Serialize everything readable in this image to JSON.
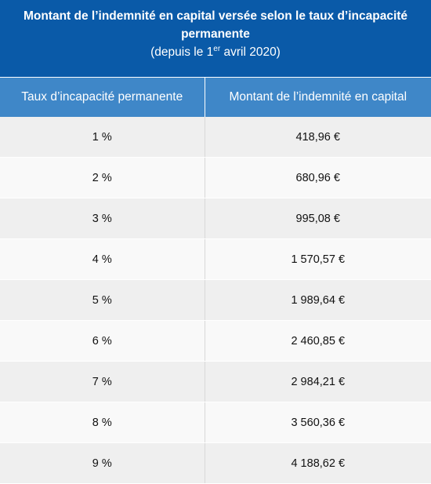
{
  "title": {
    "line1": "Montant de l’indemnité en capital versée selon le taux d’incapacité",
    "line2": "permanente",
    "line3_prefix": "(depuis le 1",
    "line3_sup": "er",
    "line3_suffix": " avril 2020)"
  },
  "table": {
    "headers": [
      "Taux d’incapacité permanente",
      "Montant de l’indemnité en capital"
    ],
    "rows": [
      [
        "1 %",
        "418,96 €"
      ],
      [
        "2 %",
        "680,96 €"
      ],
      [
        "3 %",
        "995,08 €"
      ],
      [
        "4 %",
        "1 570,57 €"
      ],
      [
        "5 %",
        "1 989,64 €"
      ],
      [
        "6 %",
        "2 460,85 €"
      ],
      [
        "7 %",
        "2 984,21 €"
      ],
      [
        "8 %",
        "3 560,36 €"
      ],
      [
        "9 %",
        "4 188,62 €"
      ]
    ]
  },
  "colors": {
    "title_bg": "#0a5aa8",
    "header_bg": "#3f87c8",
    "row_odd_bg": "#efefef",
    "row_even_bg": "#f9f9f9"
  }
}
